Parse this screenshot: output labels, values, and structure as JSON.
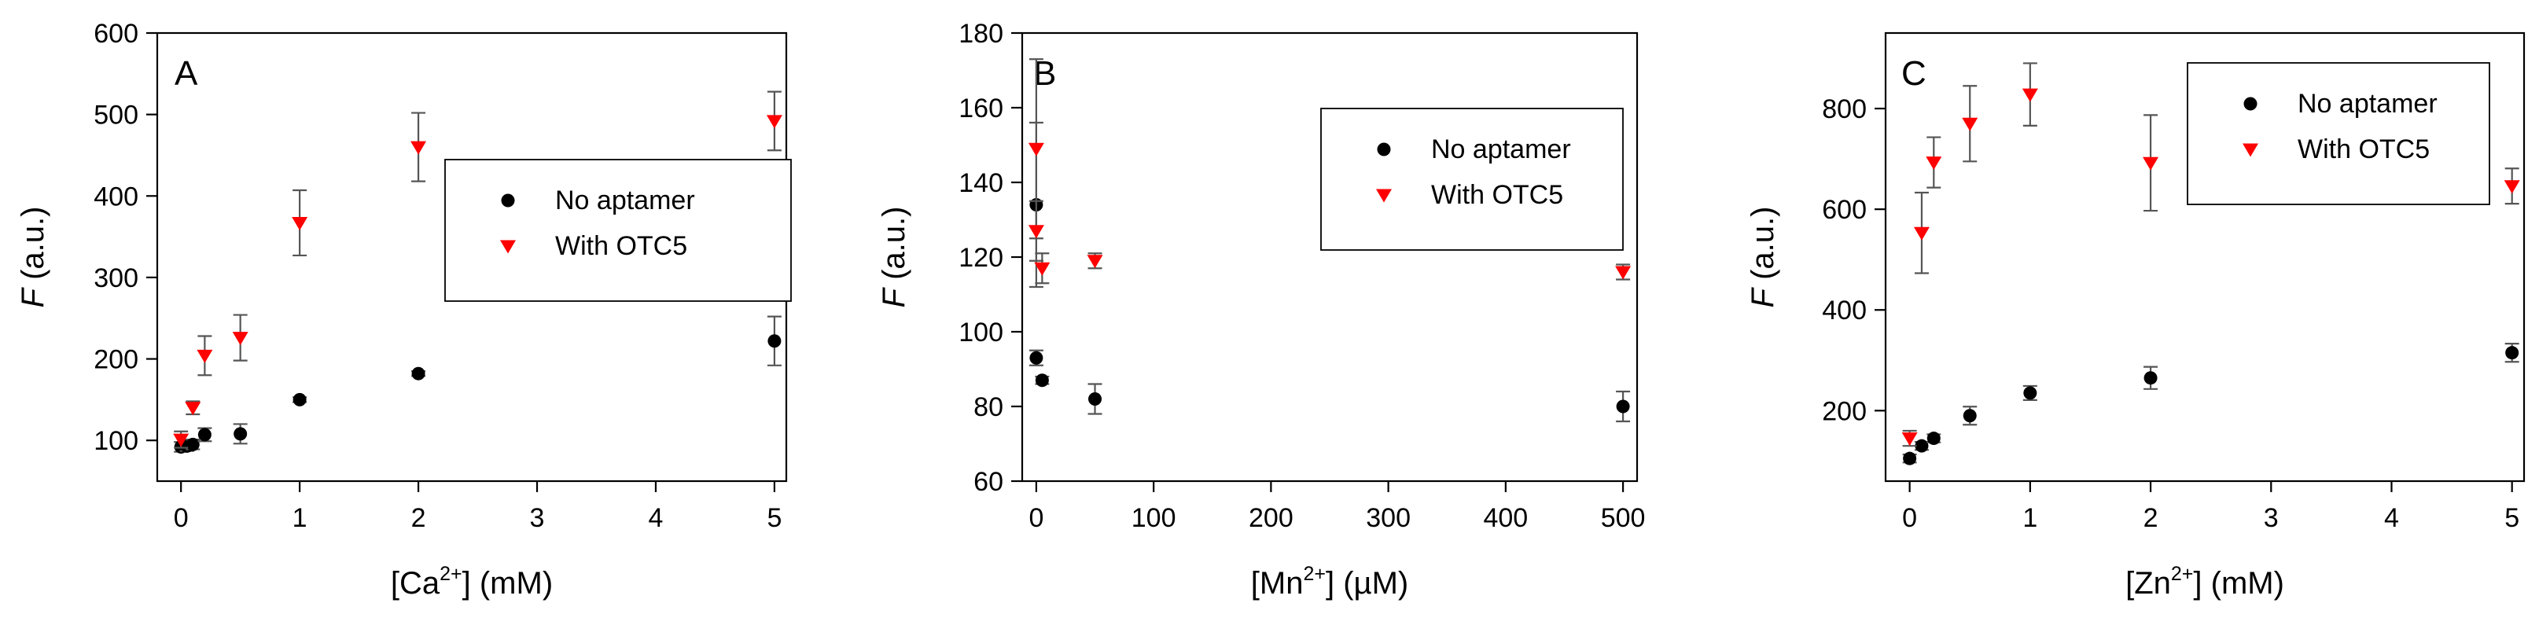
{
  "chart_data": [
    {
      "type": "scatter",
      "panel_label": "A",
      "xlabel": {
        "pre": "[Ca",
        "sup": "2+",
        "post": "] (mM)"
      },
      "ylabel": "F (a.u.)",
      "xlim": [
        -0.2,
        5.1
      ],
      "ylim": [
        50,
        600
      ],
      "xticks": [
        0,
        1,
        2,
        3,
        4,
        5
      ],
      "yticks": [
        100,
        200,
        300,
        400,
        500,
        600
      ],
      "legend_position": "center-right",
      "series": [
        {
          "name": "No aptamer",
          "marker": "circle",
          "color": "#000000",
          "x": [
            0,
            0.05,
            0.1,
            0.2,
            0.5,
            1,
            2,
            5
          ],
          "y": [
            92,
            93,
            95,
            107,
            108,
            150,
            182,
            222
          ],
          "err": [
            6,
            6,
            6,
            8,
            12,
            3,
            3,
            30
          ]
        },
        {
          "name": "With OTC5",
          "marker": "triangle-down",
          "color": "#ff0000",
          "x": [
            0,
            0.1,
            0.2,
            0.5,
            1,
            2,
            5
          ],
          "y": [
            101,
            140,
            204,
            226,
            367,
            460,
            492
          ],
          "err": [
            10,
            8,
            24,
            28,
            40,
            42,
            36
          ]
        }
      ]
    },
    {
      "type": "scatter",
      "panel_label": "B",
      "xlabel": {
        "pre": "[Mn",
        "sup": "2+",
        "post": "] (µM)"
      },
      "ylabel": "F (a.u.)",
      "xlim": [
        -12,
        512
      ],
      "ylim": [
        60,
        180
      ],
      "xticks": [
        0,
        100,
        200,
        300,
        400,
        500
      ],
      "yticks": [
        60,
        80,
        100,
        120,
        140,
        160,
        180
      ],
      "legend_position": "top-right",
      "series": [
        {
          "name": "No aptamer",
          "marker": "circle",
          "color": "#000000",
          "x": [
            0,
            0,
            5,
            50,
            500
          ],
          "y": [
            134,
            93,
            87,
            82,
            80
          ],
          "err": [
            22,
            2,
            1,
            4,
            4
          ]
        },
        {
          "name": "With OTC5",
          "marker": "triangle-down",
          "color": "#ff0000",
          "x": [
            0,
            0,
            5,
            50,
            500
          ],
          "y": [
            149,
            127,
            117,
            119,
            116
          ],
          "err": [
            24,
            8,
            4,
            2,
            2
          ]
        }
      ]
    },
    {
      "type": "scatter",
      "panel_label": "C",
      "xlabel": {
        "pre": "[Zn",
        "sup": "2+",
        "post": "] (mM)"
      },
      "ylabel": "F (a.u.)",
      "xlim": [
        -0.2,
        5.1
      ],
      "ylim": [
        60,
        950
      ],
      "xticks": [
        0,
        1,
        2,
        3,
        4,
        5
      ],
      "yticks": [
        200,
        400,
        600,
        800
      ],
      "legend_position": "top-right",
      "series": [
        {
          "name": "No aptamer",
          "marker": "circle",
          "color": "#000000",
          "x": [
            0,
            0.1,
            0.2,
            0.5,
            1,
            2,
            5
          ],
          "y": [
            105,
            130,
            145,
            190,
            235,
            265,
            315
          ],
          "err": [
            8,
            8,
            8,
            18,
            14,
            22,
            18
          ]
        },
        {
          "name": "With OTC5",
          "marker": "triangle-down",
          "color": "#ff0000",
          "x": [
            0,
            0.1,
            0.2,
            0.5,
            1,
            2,
            5
          ],
          "y": [
            145,
            553,
            693,
            770,
            828,
            692,
            646
          ],
          "err": [
            15,
            80,
            50,
            75,
            62,
            95,
            35
          ]
        }
      ]
    }
  ]
}
